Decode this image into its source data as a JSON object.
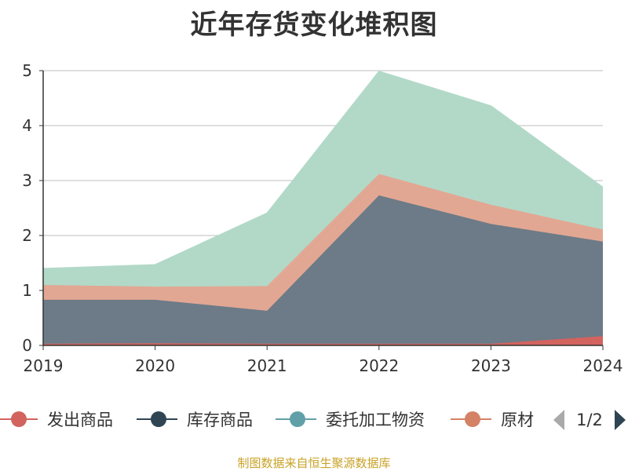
{
  "chart_data": {
    "type": "area",
    "stacked": true,
    "title": "近年存货变化堆积图",
    "ylabel": "",
    "xlabel": "",
    "x": [
      "2019",
      "2020",
      "2021",
      "2022",
      "2023",
      "2024"
    ],
    "ylim": [
      0,
      5
    ],
    "yticks": [
      "0",
      "1",
      "2",
      "3",
      "4",
      "5"
    ],
    "grid": true,
    "legend_position": "bottom",
    "legend_page": "1/2",
    "series": [
      {
        "name": "发出商品",
        "color": "#d2635f",
        "values": [
          0.03,
          0.04,
          0.03,
          0.03,
          0.03,
          0.17
        ]
      },
      {
        "name": "库存商品",
        "color": "#6c7b87",
        "legend_color": "#2f4554",
        "values": [
          0.8,
          0.79,
          0.6,
          2.7,
          2.18,
          1.72
        ]
      },
      {
        "name": "委托加工物资",
        "color": "#b2d9c8",
        "legend_color": "#61a0a8",
        "values": [
          0.3,
          0.4,
          1.33,
          1.87,
          1.8,
          0.77
        ]
      },
      {
        "name": "原材料",
        "color": "#e2a793",
        "legend_color": "#d48265",
        "values": [
          0.27,
          0.24,
          0.45,
          0.39,
          0.35,
          0.22
        ]
      }
    ],
    "stack_order": [
      0,
      1,
      3,
      2
    ],
    "legend_visible": [
      "发出商品",
      "库存商品",
      "委托加工物资",
      "原材"
    ]
  },
  "source_note": "制图数据来自恒生聚源数据库"
}
